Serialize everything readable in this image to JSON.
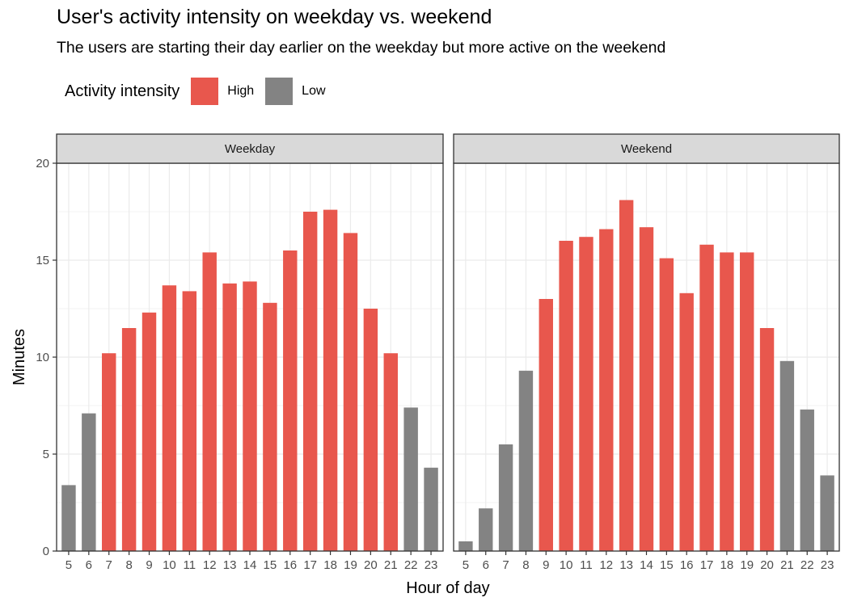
{
  "chart_data": {
    "type": "bar",
    "title": "User's activity intensity on weekday vs. weekend",
    "subtitle": "The users are starting their day earlier on the weekday but more active on the weekend",
    "xlabel": "Hour of day",
    "ylabel": "Minutes",
    "ylim": [
      0,
      20
    ],
    "yticks": [
      0,
      5,
      10,
      15,
      20
    ],
    "grid": true,
    "legend": {
      "title": "Activity intensity",
      "position": "top-left",
      "entries": [
        {
          "label": "High",
          "color": "#e8574d"
        },
        {
          "label": "Low",
          "color": "#838383"
        }
      ]
    },
    "categories": [
      "5",
      "6",
      "7",
      "8",
      "9",
      "10",
      "11",
      "12",
      "13",
      "14",
      "15",
      "16",
      "17",
      "18",
      "19",
      "20",
      "21",
      "22",
      "23"
    ],
    "panels": [
      {
        "name": "Weekday",
        "values": [
          3.4,
          7.1,
          10.2,
          11.5,
          12.3,
          13.7,
          13.4,
          15.4,
          13.8,
          13.9,
          12.8,
          15.5,
          17.5,
          17.6,
          16.4,
          12.5,
          10.2,
          7.4,
          4.3
        ],
        "intensity": [
          "Low",
          "Low",
          "High",
          "High",
          "High",
          "High",
          "High",
          "High",
          "High",
          "High",
          "High",
          "High",
          "High",
          "High",
          "High",
          "High",
          "High",
          "Low",
          "Low"
        ]
      },
      {
        "name": "Weekend",
        "values": [
          0.5,
          2.2,
          5.5,
          9.3,
          13.0,
          16.0,
          16.2,
          16.6,
          18.1,
          16.7,
          15.1,
          13.3,
          15.8,
          15.4,
          15.4,
          11.5,
          9.8,
          7.3,
          3.9
        ],
        "intensity": [
          "Low",
          "Low",
          "Low",
          "Low",
          "High",
          "High",
          "High",
          "High",
          "High",
          "High",
          "High",
          "High",
          "High",
          "High",
          "High",
          "High",
          "Low",
          "Low",
          "Low"
        ]
      }
    ]
  }
}
